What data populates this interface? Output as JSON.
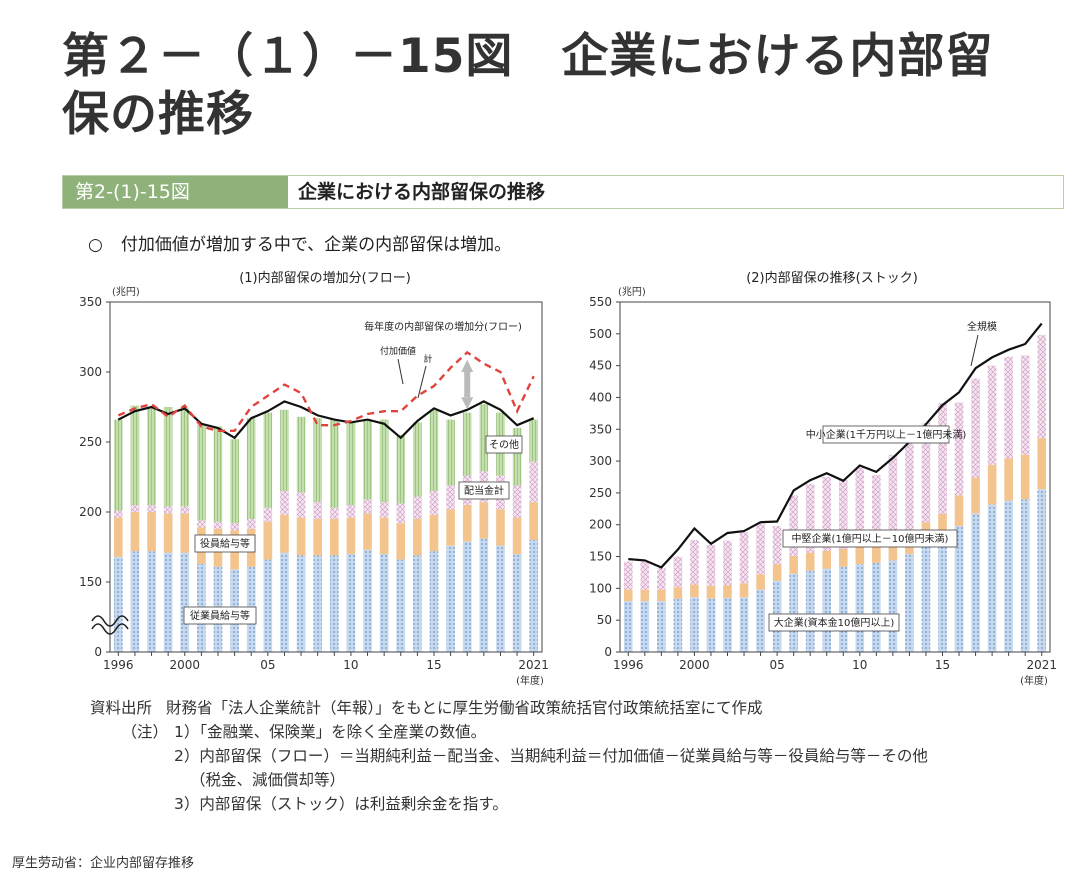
{
  "page": {
    "title_line1": "第２－（１）－15図　企業における内部留",
    "title_line2": "保の推移",
    "banner_label": "第2-(1)-15図",
    "banner_title": "企業における内部留保の推移",
    "bullet_symbol": "○",
    "bullet_text": "付加価値が増加する中で、企業の内部留保は増加。",
    "source_label": "資料出所",
    "source_text": "財務省「法人企業統計（年報）」をもとに厚生労働省政策統括官付政策統括室にて作成",
    "note_label": "（注）",
    "note1": "1）「金融業、保険業」を除く全産業の数値。",
    "note2": "2）内部留保（フロー）＝当期純利益－配当金、当期純利益＝付加価値－従業員給与等－役員給与等－その他",
    "note2b": "（税金、減価償却等）",
    "note3": "3）内部留保（ストック）は利益剰余金を指す。",
    "footer": "厚生劳动省：企业内部留存推移"
  },
  "chart_data": [
    {
      "type": "bar",
      "title": "(1)内部留保の増加分(フロー)",
      "unit_label": "(兆円)",
      "xunit_label": "(年度)",
      "ylim": [
        0,
        350
      ],
      "axis_break": true,
      "yticks": [
        0,
        150,
        200,
        250,
        300,
        350
      ],
      "x": [
        1996,
        1997,
        1998,
        1999,
        2000,
        2001,
        2002,
        2003,
        2004,
        2005,
        2006,
        2007,
        2008,
        2009,
        2010,
        2011,
        2012,
        2013,
        2014,
        2015,
        2016,
        2017,
        2018,
        2019,
        2020,
        2021
      ],
      "xtick_labels": {
        "1996": "1996",
        "2000": "2000",
        "2005": "05",
        "2010": "10",
        "2015": "15",
        "2021": "2021"
      },
      "stack": [
        {
          "name": "従業員給与等",
          "color": "#a9c4e6",
          "values": [
            168,
            172,
            172,
            171,
            171,
            163,
            161,
            159,
            161,
            166,
            171,
            169,
            169,
            169,
            170,
            173,
            170,
            166,
            169,
            172,
            176,
            179,
            181,
            176,
            170,
            180
          ]
        },
        {
          "name": "役員給与等",
          "color": "#f3c08a",
          "values": [
            28,
            28,
            28,
            28,
            28,
            26,
            27,
            28,
            27,
            27,
            27,
            27,
            26,
            26,
            26,
            26,
            26,
            26,
            26,
            26,
            26,
            26,
            26,
            26,
            26,
            27
          ]
        },
        {
          "name": "配当金計",
          "color": "#f2d7ec",
          "values": [
            5,
            5,
            5,
            5,
            5,
            5,
            5,
            5,
            7,
            10,
            17,
            18,
            12,
            8,
            9,
            10,
            11,
            14,
            16,
            17,
            17,
            21,
            22,
            24,
            23,
            29
          ]
        },
        {
          "name": "その他",
          "color": "#bcd9a3",
          "values": [
            65,
            71,
            69,
            71,
            70,
            68,
            68,
            60,
            72,
            68,
            58,
            54,
            60,
            63,
            60,
            57,
            59,
            49,
            53,
            58,
            47,
            45,
            48,
            45,
            41,
            30
          ]
        }
      ],
      "series": [
        {
          "name": "計",
          "style": "solid",
          "color": "#111111",
          "values": [
            266,
            272,
            275,
            270,
            274,
            263,
            260,
            253,
            267,
            272,
            279,
            275,
            269,
            266,
            264,
            266,
            263,
            253,
            265,
            274,
            269,
            273,
            279,
            273,
            262,
            267
          ]
        },
        {
          "name": "毎年度の内部留保の増加分(フロー)",
          "style": "dashed",
          "color": "#e0443c",
          "values": [
            269,
            274,
            277,
            268,
            276,
            261,
            258,
            258,
            275,
            283,
            291,
            285,
            262,
            262,
            265,
            270,
            272,
            272,
            283,
            290,
            303,
            314,
            306,
            300,
            272,
            297
          ]
        }
      ],
      "annotations": [
        {
          "text": "毎年度の内部留保の増加分(フロー)"
        },
        {
          "text": "付加価値"
        },
        {
          "text": "計"
        },
        {
          "text": "その他"
        },
        {
          "text": "配当金計"
        },
        {
          "text": "役員給与等"
        },
        {
          "text": "従業員給与等"
        }
      ]
    },
    {
      "type": "bar",
      "title": "(2)内部留保の推移(ストック)",
      "unit_label": "(兆円)",
      "xunit_label": "(年度)",
      "ylim": [
        0,
        550
      ],
      "yticks": [
        0,
        50,
        100,
        150,
        200,
        250,
        300,
        350,
        400,
        450,
        500,
        550
      ],
      "x": [
        1996,
        1997,
        1998,
        1999,
        2000,
        2001,
        2002,
        2003,
        2004,
        2005,
        2006,
        2007,
        2008,
        2009,
        2010,
        2011,
        2012,
        2013,
        2014,
        2015,
        2016,
        2017,
        2018,
        2019,
        2020,
        2021
      ],
      "xtick_labels": {
        "1996": "1996",
        "2000": "2000",
        "2005": "05",
        "2010": "10",
        "2015": "15",
        "2021": "2021"
      },
      "stack": [
        {
          "name": "大企業(資本金10億円以上)",
          "color": "#a9c4e6",
          "values": [
            80,
            80,
            80,
            84,
            86,
            84,
            85,
            86,
            98,
            112,
            123,
            128,
            131,
            134,
            138,
            140,
            144,
            154,
            166,
            175,
            198,
            218,
            232,
            238,
            240,
            256
          ]
        },
        {
          "name": "中堅企業(1億円以上－10億円未満)",
          "color": "#f3c08a",
          "values": [
            18,
            18,
            18,
            18,
            20,
            20,
            20,
            22,
            24,
            26,
            28,
            28,
            28,
            28,
            28,
            30,
            30,
            34,
            38,
            42,
            48,
            56,
            62,
            66,
            70,
            80
          ]
        },
        {
          "name": "中小企業(1千万円以上－1億円未満)",
          "color": "#f2d7ec",
          "values": [
            44,
            44,
            34,
            48,
            70,
            64,
            70,
            80,
            80,
            60,
            95,
            108,
            116,
            108,
            124,
            108,
            136,
            140,
            156,
            174,
            146,
            156,
            156,
            160,
            156,
            162
          ]
        }
      ],
      "series": [
        {
          "name": "全規模",
          "style": "solid",
          "color": "#111111",
          "values": [
            146,
            144,
            133,
            161,
            194,
            170,
            187,
            190,
            204,
            205,
            254,
            270,
            281,
            269,
            293,
            283,
            305,
            330,
            358,
            388,
            408,
            446,
            463,
            475,
            484,
            516
          ]
        }
      ],
      "annotations": [
        {
          "text": "全規模"
        },
        {
          "text": "中小企業(1千万円以上－1億円未満)"
        },
        {
          "text": "中堅企業(1億円以上－10億円未満)"
        },
        {
          "text": "大企業(資本金10億円以上)"
        }
      ]
    }
  ]
}
